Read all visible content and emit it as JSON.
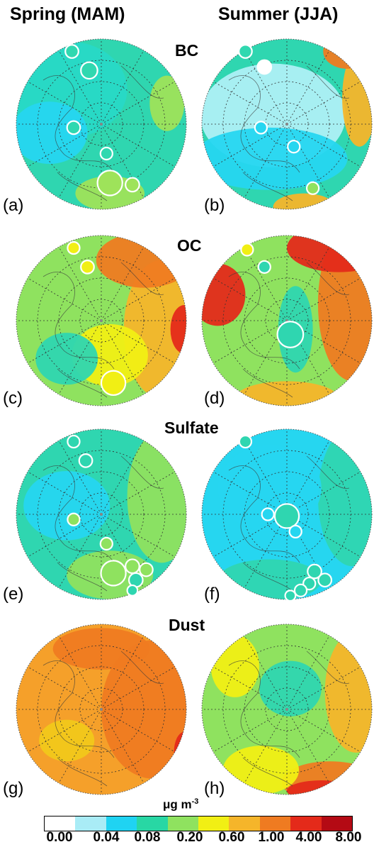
{
  "columns": [
    "Spring (MAM)",
    "Summer (JJA)"
  ],
  "rows": [
    "BC",
    "OC",
    "Sulfate",
    "Dust"
  ],
  "panel_labels": [
    "(a)",
    "(b)",
    "(c)",
    "(d)",
    "(e)",
    "(f)",
    "(g)",
    "(h)"
  ],
  "colorbar": {
    "title": "μg m",
    "title_exp": "-3",
    "ticks": [
      "0.00",
      "0.04",
      "0.08",
      "0.20",
      "0.60",
      "1.00",
      "4.00",
      "8.00"
    ],
    "colors": [
      "#ffffff",
      "#a9ecf6",
      "#1fd3f2",
      "#28d7a4",
      "#8fe25f",
      "#f1ef14",
      "#f5b52a",
      "#ef7b21",
      "#e42a1a",
      "#b40a14"
    ]
  },
  "panels": [
    {
      "id": "a",
      "base": "#2fd6b0",
      "regions": [
        [
          "#28d9c6",
          0.3,
          0.3,
          0.35,
          0.28
        ],
        [
          "#26d6f0",
          0.2,
          0.55,
          0.22,
          0.18
        ],
        [
          "#9ee35a",
          0.88,
          0.38,
          0.1,
          0.16
        ],
        [
          "#9ee35a",
          0.55,
          0.9,
          0.2,
          0.1
        ]
      ],
      "sites": [
        [
          "#30d8b0",
          0.33,
          0.08,
          0.038
        ],
        [
          "#30d8b0",
          0.43,
          0.19,
          0.048
        ],
        [
          "#30d8b0",
          0.34,
          0.52,
          0.038
        ],
        [
          "#30d8b0",
          0.53,
          0.67,
          0.035
        ],
        [
          "#9ee35a",
          0.55,
          0.84,
          0.072
        ],
        [
          "#9ee35a",
          0.68,
          0.85,
          0.04
        ]
      ]
    },
    {
      "id": "b",
      "base": "#2fd6b0",
      "regions": [
        [
          "#aef0f6",
          0.42,
          0.45,
          0.42,
          0.3
        ],
        [
          "#26d6f0",
          0.4,
          0.7,
          0.45,
          0.18
        ],
        [
          "#f5b52a",
          0.92,
          0.35,
          0.1,
          0.28
        ],
        [
          "#ef7b21",
          0.85,
          0.08,
          0.14,
          0.1
        ],
        [
          "#f5b52a",
          0.6,
          0.98,
          0.18,
          0.08
        ]
      ],
      "sites": [
        [
          "#30d8b0",
          0.26,
          0.08,
          0.038
        ],
        [
          "#ffffff",
          0.37,
          0.17,
          0.04
        ],
        [
          "#26d6f0",
          0.35,
          0.52,
          0.035
        ],
        [
          "#26d6f0",
          0.54,
          0.63,
          0.035
        ],
        [
          "#8fe25f",
          0.65,
          0.87,
          0.035
        ]
      ]
    },
    {
      "id": "c",
      "base": "#8fe25f",
      "regions": [
        [
          "#f5b52a",
          0.85,
          0.55,
          0.22,
          0.4
        ],
        [
          "#ef7b21",
          0.75,
          0.15,
          0.28,
          0.16
        ],
        [
          "#f1ef14",
          0.55,
          0.7,
          0.22,
          0.18
        ],
        [
          "#e42a1a",
          0.98,
          0.55,
          0.08,
          0.14
        ],
        [
          "#2fd6b0",
          0.3,
          0.72,
          0.18,
          0.15
        ]
      ],
      "sites": [
        [
          "#f1ef14",
          0.34,
          0.08,
          0.035
        ],
        [
          "#f1ef14",
          0.42,
          0.19,
          0.038
        ],
        [
          "#f1ef14",
          0.57,
          0.86,
          0.07
        ]
      ]
    },
    {
      "id": "d",
      "base": "#8fe25f",
      "regions": [
        [
          "#ef7b21",
          0.88,
          0.4,
          0.2,
          0.45
        ],
        [
          "#e42a1a",
          0.8,
          0.08,
          0.3,
          0.14
        ],
        [
          "#e42a1a",
          0.1,
          0.35,
          0.16,
          0.18
        ],
        [
          "#f5b52a",
          0.5,
          0.95,
          0.3,
          0.1
        ],
        [
          "#2fd6b0",
          0.55,
          0.55,
          0.1,
          0.25
        ]
      ],
      "sites": [
        [
          "#f1ef14",
          0.27,
          0.09,
          0.035
        ],
        [
          "#2fd6b0",
          0.37,
          0.19,
          0.035
        ],
        [
          "#2fd6b0",
          0.52,
          0.58,
          0.075
        ]
      ]
    },
    {
      "id": "e",
      "base": "#2fd6b0",
      "regions": [
        [
          "#8fe25f",
          0.85,
          0.4,
          0.2,
          0.38
        ],
        [
          "#26d6f0",
          0.3,
          0.45,
          0.25,
          0.2
        ],
        [
          "#8fe25f",
          0.55,
          0.85,
          0.25,
          0.14
        ]
      ],
      "sites": [
        [
          "#2fd6b0",
          0.34,
          0.08,
          0.035
        ],
        [
          "#2fd6b0",
          0.41,
          0.19,
          0.038
        ],
        [
          "#8fe25f",
          0.34,
          0.53,
          0.035
        ],
        [
          "#8fe25f",
          0.53,
          0.67,
          0.035
        ],
        [
          "#8fe25f",
          0.57,
          0.84,
          0.072
        ],
        [
          "#8fe25f",
          0.68,
          0.8,
          0.04
        ],
        [
          "#8fe25f",
          0.76,
          0.82,
          0.038
        ],
        [
          "#2fd6b0",
          0.7,
          0.88,
          0.04
        ],
        [
          "#2fd6b0",
          0.68,
          0.94,
          0.03
        ]
      ]
    },
    {
      "id": "f",
      "base": "#26d6f0",
      "regions": [
        [
          "#2fd6b0",
          0.88,
          0.4,
          0.2,
          0.4
        ],
        [
          "#2fd6b0",
          0.4,
          0.88,
          0.3,
          0.12
        ],
        [
          "#26d6f0",
          0.4,
          0.35,
          0.3,
          0.25
        ]
      ],
      "sites": [
        [
          "#2fd6b0",
          0.26,
          0.08,
          0.035
        ],
        [
          "#26d6f0",
          0.39,
          0.5,
          0.035
        ],
        [
          "#2fd6b0",
          0.5,
          0.51,
          0.07
        ],
        [
          "#26d6f0",
          0.55,
          0.6,
          0.035
        ],
        [
          "#2fd6b0",
          0.66,
          0.83,
          0.04
        ],
        [
          "#2fd6b0",
          0.72,
          0.88,
          0.038
        ],
        [
          "#2fd6b0",
          0.63,
          0.9,
          0.035
        ],
        [
          "#2fd6b0",
          0.58,
          0.94,
          0.035
        ],
        [
          "#2fd6b0",
          0.52,
          0.97,
          0.03
        ]
      ]
    },
    {
      "id": "g",
      "base": "#f5a02a",
      "regions": [
        [
          "#ef7b21",
          0.8,
          0.5,
          0.3,
          0.4
        ],
        [
          "#f1c81a",
          0.3,
          0.68,
          0.16,
          0.12
        ],
        [
          "#e42a1a",
          0.98,
          0.75,
          0.06,
          0.12
        ],
        [
          "#ef7b21",
          0.5,
          0.15,
          0.28,
          0.12
        ]
      ],
      "sites": []
    },
    {
      "id": "h",
      "base": "#8fe25f",
      "regions": [
        [
          "#2fd6b0",
          0.52,
          0.38,
          0.18,
          0.16
        ],
        [
          "#f5b52a",
          0.9,
          0.4,
          0.18,
          0.35
        ],
        [
          "#ef7b21",
          0.75,
          0.92,
          0.28,
          0.12
        ],
        [
          "#e42a1a",
          0.7,
          0.97,
          0.2,
          0.06
        ],
        [
          "#f1ef14",
          0.35,
          0.85,
          0.22,
          0.14
        ],
        [
          "#f1ef14",
          0.2,
          0.25,
          0.14,
          0.18
        ]
      ],
      "sites": []
    }
  ]
}
